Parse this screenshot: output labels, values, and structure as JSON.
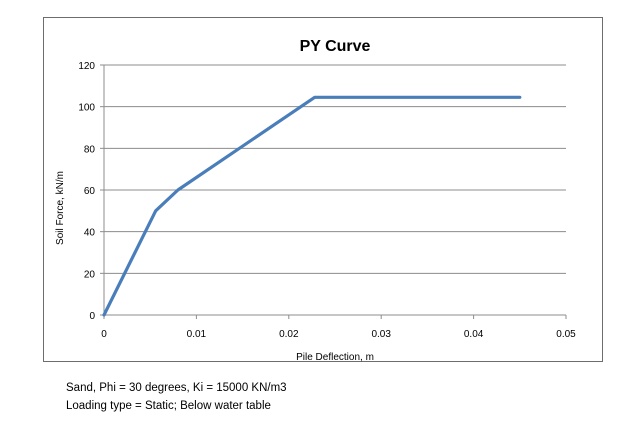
{
  "chart_data": {
    "type": "line",
    "title": "PY Curve",
    "xlabel": "Pile Deflection, m",
    "ylabel": "Soil Force, kN/m",
    "xlim": [
      0,
      0.05
    ],
    "ylim": [
      0,
      120
    ],
    "x_ticks": [
      "0",
      "0.01",
      "0.02",
      "0.03",
      "0.04",
      "0.05"
    ],
    "y_ticks": [
      "0",
      "20",
      "40",
      "60",
      "80",
      "100",
      "120"
    ],
    "grid": "horizontal",
    "legend": "none",
    "series": [
      {
        "color": "#4a7ebb",
        "x": [
          0,
          0.0056,
          0.008,
          0.0228,
          0.045
        ],
        "y": [
          0,
          50,
          60,
          104.5,
          104.5
        ]
      }
    ]
  },
  "notes": {
    "line1": "Sand, Phi = 30 degrees, Ki = 15000 KN/m3",
    "line2": "Loading type = Static;  Below water table"
  }
}
